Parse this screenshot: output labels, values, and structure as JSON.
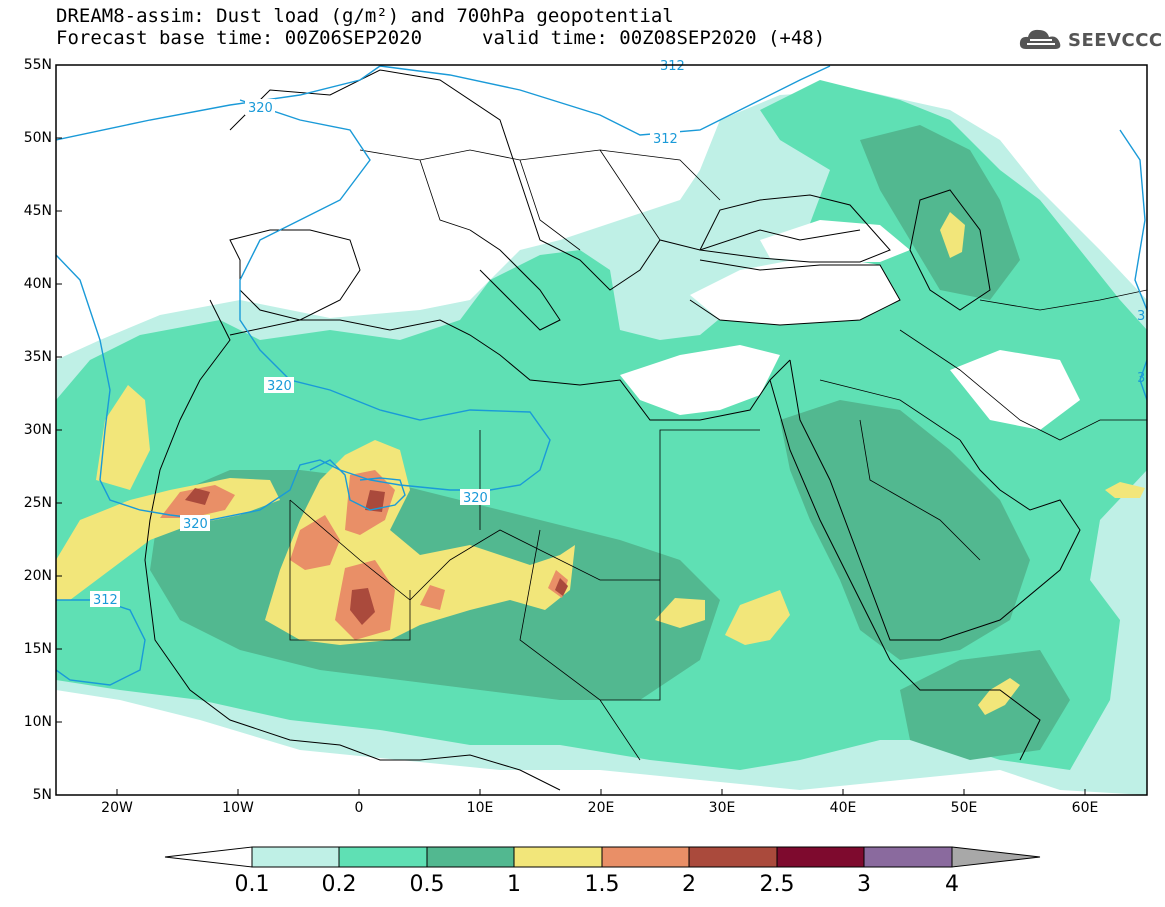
{
  "title": {
    "line1": "DREAM8-assim: Dust load (g/m²) and 700hPa geopotential",
    "line2_left": "Forecast base time: 00Z06SEP2020",
    "line2_right": "valid time: 00Z08SEP2020 (+48)"
  },
  "logo": {
    "text": "SEEVCCC",
    "icon": "cloud-icon"
  },
  "axes": {
    "lat_labels": [
      "55N",
      "50N",
      "45N",
      "40N",
      "35N",
      "30N",
      "25N",
      "20N",
      "15N",
      "10N",
      "5N"
    ],
    "lon_labels": [
      "20W",
      "10W",
      "0",
      "10E",
      "20E",
      "30E",
      "40E",
      "50E",
      "60E"
    ]
  },
  "contour_labels": [
    "320",
    "312",
    "320",
    "320",
    "320",
    "312",
    "312",
    "3",
    "3"
  ],
  "colorbar": {
    "labels": [
      "0.1",
      "0.2",
      "0.5",
      "1",
      "1.5",
      "2",
      "2.5",
      "3",
      "4"
    ],
    "colors": [
      "#ffffff",
      "#bff0e6",
      "#5fe0b4",
      "#52b890",
      "#f2e67a",
      "#e98f67",
      "#aa4a3c",
      "#7e0a2e",
      "#8a6a9e",
      "#a8a8a8"
    ]
  },
  "colors": {
    "light_green": "#bff0e6",
    "green": "#5fe0b4",
    "dark_green": "#52b890",
    "yellow": "#f2e67a",
    "orange": "#e98f67",
    "brown": "#aa4a3c",
    "contour": "#1a9ad8"
  }
}
